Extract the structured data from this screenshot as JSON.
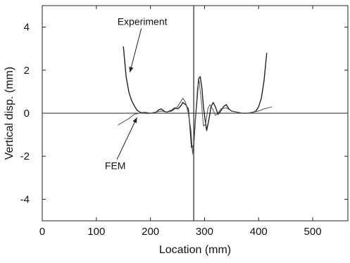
{
  "chart_data": {
    "type": "line",
    "title": "",
    "xlabel": "Location (mm)",
    "ylabel": "Vertical disp. (mm)",
    "xlim": [
      0,
      565
    ],
    "ylim": [
      -5,
      5
    ],
    "xticks": [
      0,
      100,
      200,
      300,
      400,
      500
    ],
    "yticks": [
      -4,
      -2,
      0,
      2,
      4
    ],
    "grid": false,
    "legend": "none",
    "reference_lines": [
      {
        "orientation": "horizontal",
        "value": 0
      },
      {
        "orientation": "vertical",
        "value": 280
      }
    ],
    "series": [
      {
        "name": "Experiment",
        "color": "#222222",
        "x": [
          150,
          155,
          160,
          165,
          170,
          175,
          180,
          190,
          200,
          210,
          215,
          220,
          225,
          230,
          240,
          245,
          250,
          255,
          260,
          265,
          270,
          273,
          276,
          280,
          283,
          286,
          289,
          292,
          295,
          298,
          301,
          304,
          308,
          312,
          316,
          320,
          325,
          330,
          335,
          340,
          345,
          350,
          360,
          370,
          380,
          390,
          395,
          400,
          405,
          410,
          415
        ],
        "y": [
          3.1,
          1.7,
          1.0,
          0.6,
          0.35,
          0.15,
          0.05,
          0.0,
          0.0,
          0.05,
          0.15,
          0.2,
          0.1,
          0.05,
          0.15,
          0.25,
          0.2,
          0.3,
          0.5,
          0.4,
          0.2,
          -0.6,
          -1.6,
          -1.5,
          -0.3,
          0.6,
          1.6,
          1.7,
          1.2,
          0.3,
          -0.3,
          -0.8,
          -0.3,
          0.3,
          0.5,
          0.3,
          -0.05,
          0.1,
          0.3,
          0.4,
          0.2,
          0.1,
          0.05,
          0.0,
          0.0,
          0.05,
          0.1,
          0.3,
          0.7,
          1.5,
          2.8
        ]
      },
      {
        "name": "FEM",
        "color": "#555555",
        "x": [
          140,
          150,
          160,
          170,
          180,
          190,
          200,
          210,
          220,
          230,
          240,
          250,
          255,
          260,
          265,
          270,
          275,
          278,
          281,
          284,
          287,
          290,
          294,
          298,
          302,
          306,
          310,
          315,
          320,
          325,
          330,
          340,
          350,
          360,
          370,
          380,
          390,
          400,
          410,
          425
        ],
        "y": [
          -0.55,
          -0.4,
          -0.25,
          -0.05,
          0.0,
          0.05,
          0.0,
          0.05,
          0.1,
          0.05,
          0.1,
          0.3,
          0.5,
          0.7,
          0.5,
          0.0,
          -0.8,
          -1.9,
          -1.1,
          0.1,
          1.2,
          1.5,
          0.6,
          -0.6,
          -0.5,
          0.2,
          0.4,
          0.2,
          -0.1,
          0.0,
          0.2,
          0.25,
          0.1,
          0.05,
          0.0,
          0.0,
          0.05,
          0.1,
          0.2,
          0.3
        ]
      }
    ],
    "annotations": [
      {
        "text": "Experiment",
        "series": "Experiment",
        "arrow_to": [
          162,
          1.9
        ],
        "label_at": [
          185,
          4.1
        ]
      },
      {
        "text": "FEM",
        "series": "FEM",
        "arrow_to": [
          175,
          -0.2
        ],
        "label_at": [
          135,
          -2.6
        ]
      }
    ]
  }
}
